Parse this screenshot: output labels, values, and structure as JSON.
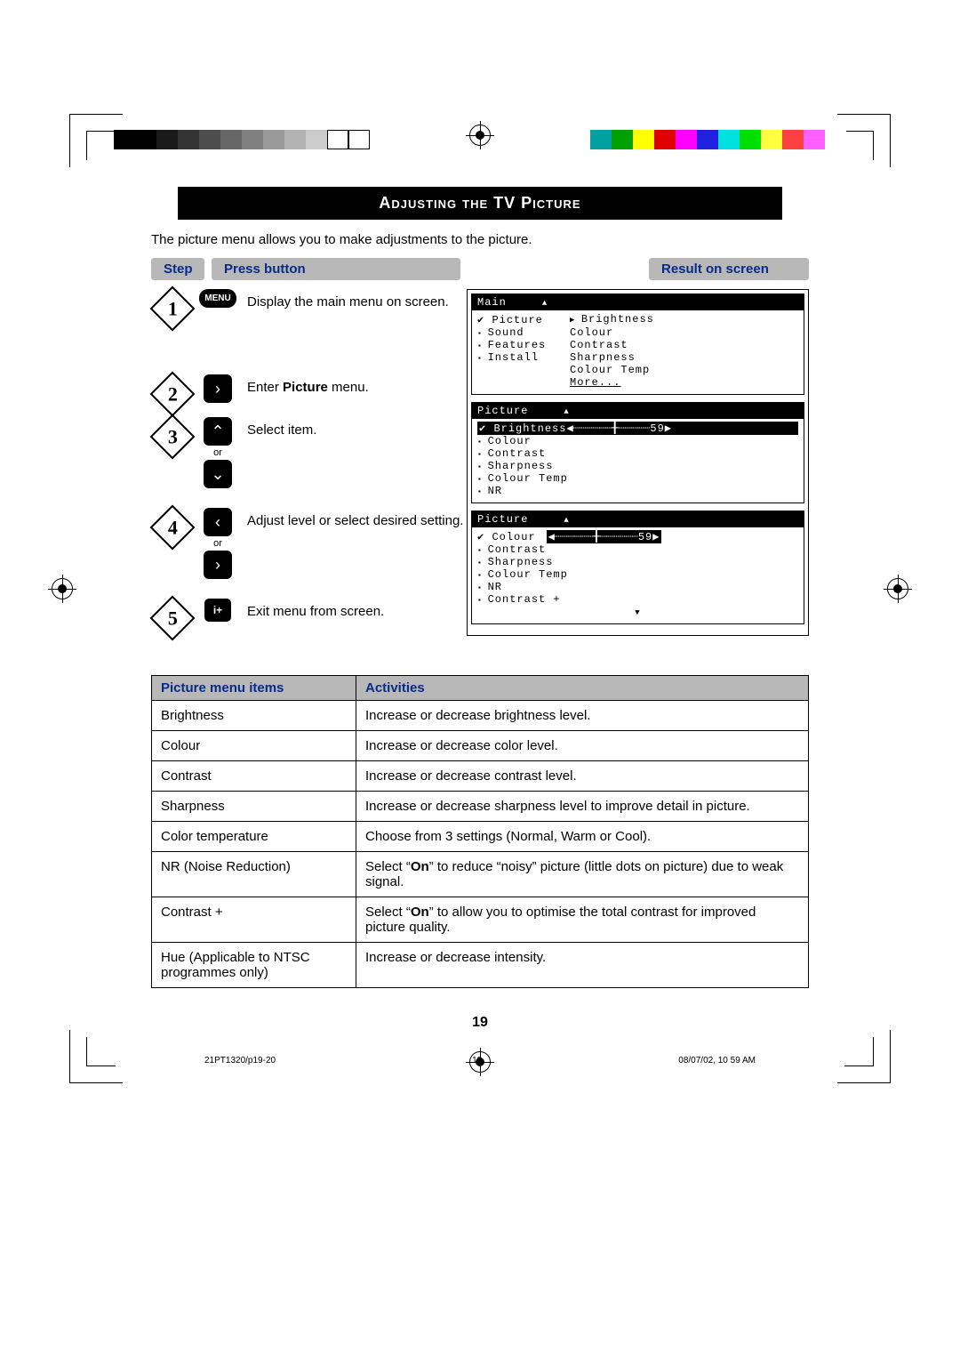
{
  "printer_marks": {
    "grayscale_bar": [
      "#000000",
      "#000000",
      "#1a1a1a",
      "#333333",
      "#4d4d4d",
      "#666666",
      "#808080",
      "#999999",
      "#b3b3b3",
      "#cccccc",
      "#ffffff",
      "#ffffff"
    ],
    "color_bar": [
      "#00a0a0",
      "#00a000",
      "#ffff00",
      "#e00000",
      "#ff00ff",
      "#2020e0",
      "#00e0e0",
      "#00e000",
      "#ffff40",
      "#ff4040",
      "#ff60ff",
      "#ffffff"
    ]
  },
  "title": "Adjusting the TV Picture",
  "intro": "The picture menu allows you to make adjustments to the picture.",
  "headers": {
    "step": "Step",
    "press": "Press button",
    "result": "Result on screen"
  },
  "steps": {
    "s1": {
      "num": "1",
      "btn": "MENU",
      "text": "Display the main menu on screen."
    },
    "s2": {
      "num": "2",
      "text_pre": "Enter ",
      "text_bold": "Picture",
      "text_post": " menu."
    },
    "s3": {
      "num": "3",
      "or": "or",
      "text": "Select item."
    },
    "s4": {
      "num": "4",
      "or": "or",
      "text": "Adjust level or select desired setting."
    },
    "s5": {
      "num": "5",
      "btn": "⦾",
      "text": "Exit menu from screen."
    }
  },
  "osd1": {
    "title": "Main",
    "left": [
      "Picture",
      "Sound",
      "Features",
      "Install"
    ],
    "right": [
      "Brightness",
      "Colour",
      "Contrast",
      "Sharpness",
      "Colour Temp",
      "More..."
    ]
  },
  "osd2": {
    "title": "Picture",
    "sel_label": "Brightness",
    "sel_value": "59",
    "items": [
      "Colour",
      "Contrast",
      "Sharpness",
      "Colour Temp",
      "NR"
    ]
  },
  "osd3": {
    "title": "Picture",
    "sel_label": "Colour",
    "sel_value": "59",
    "items": [
      "Contrast",
      "Sharpness",
      "Colour Temp",
      "NR",
      "Contrast +"
    ]
  },
  "table": {
    "h1": "Picture menu items",
    "h2": "Activities",
    "rows": [
      {
        "a": "Brightness",
        "b": "Increase or decrease brightness level."
      },
      {
        "a": "Colour",
        "b": "Increase or decrease color level."
      },
      {
        "a": "Contrast",
        "b": "Increase or decrease contrast level."
      },
      {
        "a": "Sharpness",
        "b": "Increase or decrease sharpness level to improve detail in picture."
      },
      {
        "a": "Color temperature",
        "b": "Choose from 3 settings (Normal, Warm or Cool)."
      },
      {
        "a": "NR (Noise Reduction)",
        "b_pre": "Select “",
        "b_bold": "On",
        "b_post": "” to reduce “noisy” picture (little dots on picture) due to weak signal."
      },
      {
        "a": "Contrast +",
        "b_pre": "Select “",
        "b_bold": "On",
        "b_post": "” to allow you to optimise the total contrast for improved picture quality."
      },
      {
        "a": "Hue (Applicable to NTSC programmes only)",
        "b": "Increase or decrease intensity."
      }
    ]
  },
  "pagenum": "19",
  "footer": {
    "left": "21PT1320/p19-20",
    "mid": "19",
    "right": "08/07/02, 10 59 AM"
  }
}
